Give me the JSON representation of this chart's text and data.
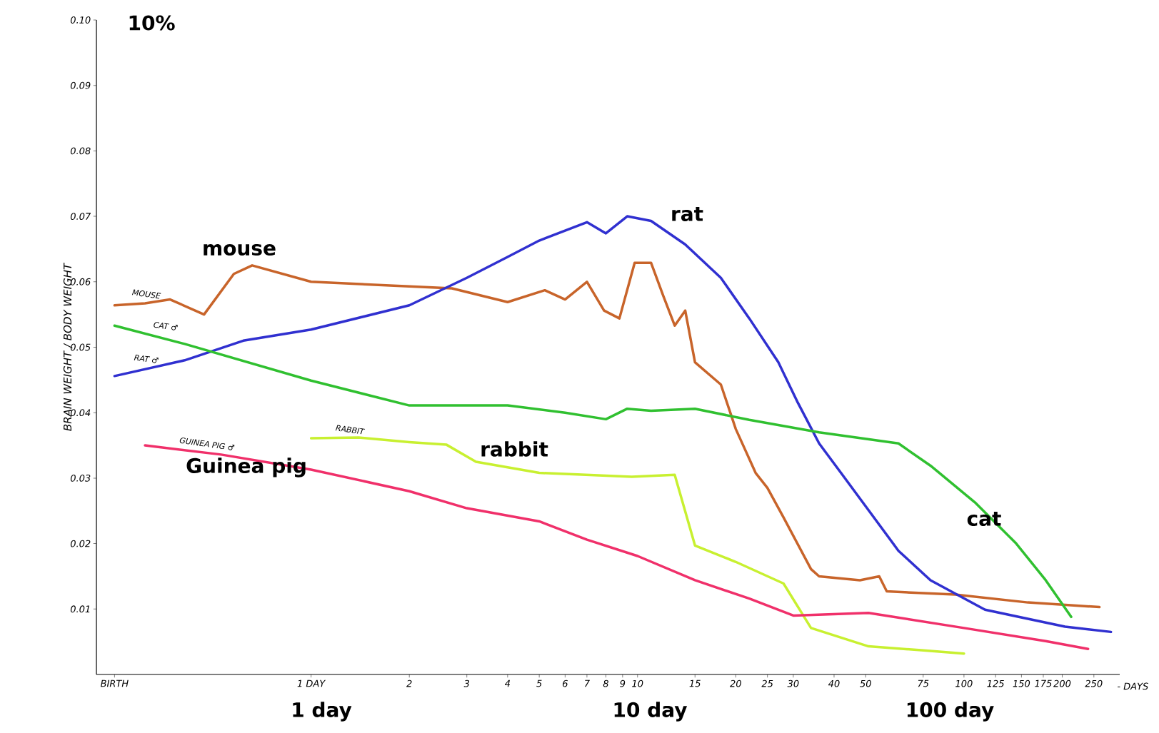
{
  "chart_data": {
    "type": "line",
    "log": "x",
    "marker": "none",
    "line_style": "solid",
    "grid": false,
    "xlabel": "- DAYS",
    "ylabel": "BRAIN WEIGHT / BODY WEIGHT",
    "xlim": [
      0.22,
      300
    ],
    "ylim": [
      0,
      0.1
    ],
    "xticks": [
      {
        "value": 0.25,
        "label": "BIRTH"
      },
      {
        "value": 1,
        "label": "1 DAY"
      },
      2,
      3,
      4,
      5,
      6,
      7,
      8,
      9,
      10,
      15,
      20,
      25,
      30,
      40,
      50,
      75,
      100,
      125,
      150,
      175,
      200,
      250
    ],
    "yticks": [
      0.01,
      0.02,
      0.03,
      0.04,
      0.05,
      0.06,
      0.07,
      0.08,
      0.09,
      {
        "value": 0.1,
        "label": "0.10"
      }
    ],
    "series": [
      {
        "color": "#c8642a",
        "x": [
          0.25,
          0.31,
          0.37,
          0.47,
          0.58,
          0.66,
          1,
          2,
          2.7,
          4,
          5.2,
          6,
          7,
          7.9,
          8.8,
          9.8,
          11,
          12,
          13,
          14,
          15,
          18,
          20,
          23,
          25,
          28,
          34,
          36,
          48,
          55,
          58,
          94,
          157,
          260
        ],
        "values": [
          0.0564,
          0.0567,
          0.0573,
          0.055,
          0.0612,
          0.0625,
          0.06,
          0.0593,
          0.059,
          0.0569,
          0.0587,
          0.0573,
          0.06,
          0.0556,
          0.0544,
          0.0629,
          0.0629,
          0.0578,
          0.0533,
          0.0556,
          0.0477,
          0.0443,
          0.0375,
          0.0308,
          0.0285,
          0.024,
          0.0161,
          0.015,
          0.0144,
          0.015,
          0.0127,
          0.0122,
          0.011,
          0.0103
        ]
      },
      {
        "color": "#3030d0",
        "x": [
          0.25,
          0.41,
          0.62,
          1,
          2,
          3,
          4,
          5,
          7,
          8,
          9.3,
          11,
          14,
          18,
          22,
          27,
          31,
          36,
          42,
          51,
          63,
          79,
          116,
          157,
          204,
          282
        ],
        "values": [
          0.0456,
          0.048,
          0.051,
          0.0527,
          0.0564,
          0.0606,
          0.0638,
          0.0663,
          0.0691,
          0.0674,
          0.07,
          0.0693,
          0.0657,
          0.0606,
          0.0544,
          0.0477,
          0.0415,
          0.0353,
          0.0308,
          0.0251,
          0.0189,
          0.0144,
          0.0099,
          0.0085,
          0.0073,
          0.0065
        ]
      },
      {
        "color": "#30c030",
        "x": [
          0.25,
          0.41,
          1,
          2,
          4,
          6,
          8,
          9.3,
          11,
          15,
          22,
          36,
          63,
          79,
          108,
          144,
          178,
          213
        ],
        "values": [
          0.0533,
          0.0505,
          0.0449,
          0.0411,
          0.0411,
          0.04,
          0.039,
          0.0406,
          0.0403,
          0.0406,
          0.0389,
          0.037,
          0.0353,
          0.0319,
          0.0263,
          0.0201,
          0.0144,
          0.0088
        ]
      },
      {
        "color": "#c8f030",
        "x": [
          1,
          1.4,
          2,
          2.6,
          3.2,
          5,
          9.6,
          13,
          15,
          20,
          28,
          34,
          51,
          74,
          100
        ],
        "values": [
          0.0361,
          0.0362,
          0.0355,
          0.0351,
          0.0325,
          0.0308,
          0.0302,
          0.0305,
          0.0197,
          0.0172,
          0.0139,
          0.0071,
          0.0043,
          0.0037,
          0.0032
        ]
      },
      {
        "color": "#f0306a",
        "x": [
          0.31,
          0.53,
          1,
          2,
          3,
          5,
          7,
          10,
          15,
          22,
          30,
          51,
          100,
          178,
          240
        ],
        "values": [
          0.035,
          0.0336,
          0.0313,
          0.028,
          0.0254,
          0.0234,
          0.0206,
          0.0181,
          0.0144,
          0.0116,
          0.009,
          0.0094,
          0.0071,
          0.0051,
          0.0039
        ]
      }
    ],
    "annotations": [
      "10%",
      "mouse",
      "rat",
      "cat",
      "rabbit",
      "Guinea pig",
      "MOUSE",
      "CAT ♂",
      "RAT ♂",
      "GUINEA PIG ♂",
      "RABBIT",
      "1 day",
      "10 day",
      "100 day"
    ]
  }
}
